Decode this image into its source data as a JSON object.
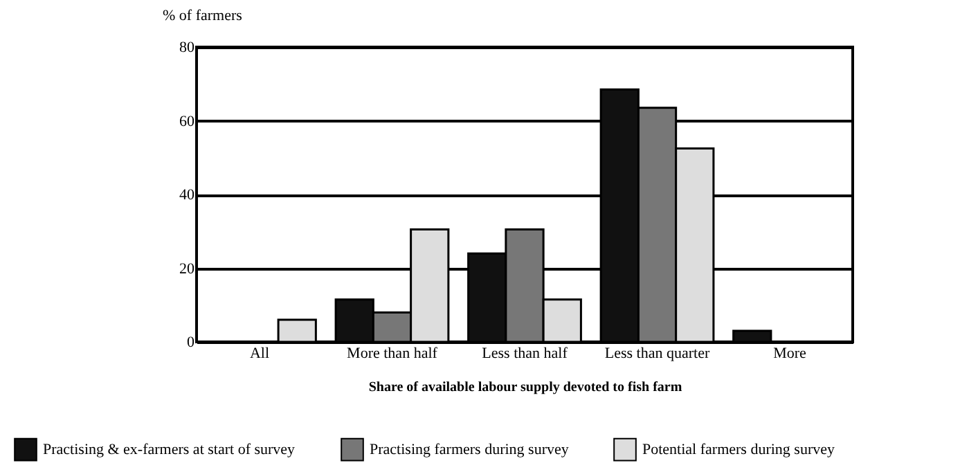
{
  "chart_data": {
    "type": "bar",
    "xlabel": "Share of available labour supply devoted to fish farm",
    "ylabel": "% of farmers",
    "categories": [
      "All",
      "More than half",
      "Less than half",
      "Less than quarter",
      "More"
    ],
    "series": [
      {
        "name": "Practising & ex-farmers at start of survey",
        "color": "#111111",
        "values": [
          null,
          11.5,
          24,
          68.5,
          3
        ]
      },
      {
        "name": "Practising farmers during survey",
        "color": "#777777",
        "values": [
          null,
          8,
          30.5,
          63.5,
          null
        ]
      },
      {
        "name": "Potential farmers during survey",
        "color": "#dddddd",
        "values": [
          6,
          30.5,
          11.5,
          52.5,
          null
        ]
      }
    ],
    "ylim": [
      0,
      80
    ],
    "yticks": [
      0,
      20,
      40,
      60,
      80
    ],
    "grid": "y",
    "legend": "bottom"
  }
}
